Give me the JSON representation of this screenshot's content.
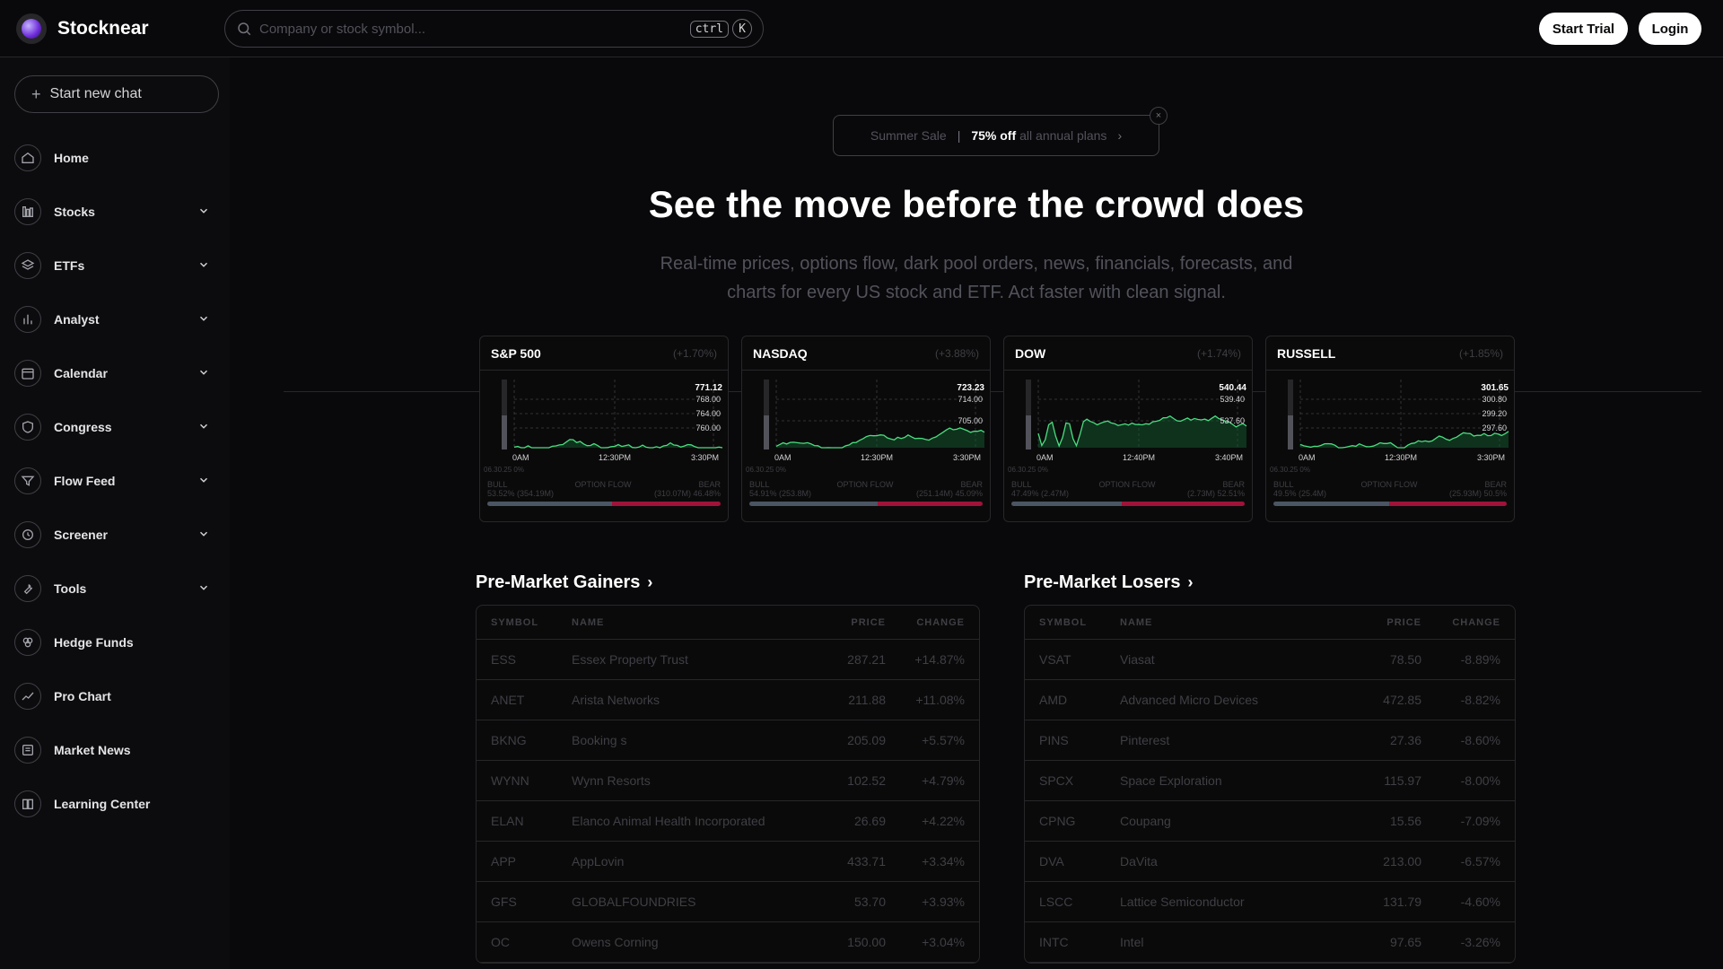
{
  "app": {
    "name": "Stocknear"
  },
  "search": {
    "placeholder": "Company or stock symbol...",
    "kbd_ctrl": "ctrl",
    "kbd_k": "K"
  },
  "header": {
    "trial_label": "Start Trial",
    "login_label": "Login"
  },
  "sidebar": {
    "new_chat_label": "Start new chat",
    "items": [
      {
        "label": "Home",
        "icon": "home-icon",
        "expandable": false
      },
      {
        "label": "Stocks",
        "icon": "stocks-icon",
        "expandable": true
      },
      {
        "label": "ETFs",
        "icon": "layers-icon",
        "expandable": true
      },
      {
        "label": "Analyst",
        "icon": "bar-chart-icon",
        "expandable": true
      },
      {
        "label": "Calendar",
        "icon": "calendar-icon",
        "expandable": true
      },
      {
        "label": "Congress",
        "icon": "shield-icon",
        "expandable": true
      },
      {
        "label": "Flow Feed",
        "icon": "filter-icon",
        "expandable": true
      },
      {
        "label": "Screener",
        "icon": "screener-icon",
        "expandable": true
      },
      {
        "label": "Tools",
        "icon": "wrench-icon",
        "expandable": true
      },
      {
        "label": "Hedge Funds",
        "icon": "circles-icon",
        "expandable": false
      },
      {
        "label": "Pro Chart",
        "icon": "line-chart-icon",
        "expandable": false
      },
      {
        "label": "Market News",
        "icon": "newspaper-icon",
        "expandable": false
      },
      {
        "label": "Learning Center",
        "icon": "book-icon",
        "expandable": false
      }
    ]
  },
  "promo": {
    "label": "Summer Sale",
    "highlight": "75% off",
    "rest": "all annual plans",
    "close": "×",
    "arrow": "›"
  },
  "hero": {
    "title": "See the move before the crowd does",
    "subtitle": "Real-time prices, options flow, dark pool orders, news, financials, forecasts, and charts for every US stock and ETF. Act faster with clean signal."
  },
  "indices": [
    {
      "name": "S&P 500",
      "change": "(+1.70%)",
      "last": "771.12",
      "levels": [
        "768.00",
        "764.00",
        "760.00"
      ],
      "times": [
        "0AM",
        "12:30PM",
        "3:30PM"
      ],
      "ts": "06.30.25 0%",
      "bull": "BULL",
      "bear": "BEAR",
      "flow_label": "OPTION FLOW",
      "bull_val": "53.52% (354.19M)",
      "bear_val": "(310.07M) 46.48%",
      "bull_pct": 53.52,
      "seed": 1
    },
    {
      "name": "NASDAQ",
      "change": "(+3.88%)",
      "last": "723.23",
      "levels": [
        "714.00",
        "705.00"
      ],
      "times": [
        "0AM",
        "12:30PM",
        "3:30PM"
      ],
      "ts": "06.30.25 0%",
      "bull": "BULL",
      "bear": "BEAR",
      "flow_label": "OPTION FLOW",
      "bull_val": "54.91% (253.8M)",
      "bear_val": "(251.14M) 45.09%",
      "bull_pct": 54.91,
      "seed": 2
    },
    {
      "name": "DOW",
      "change": "(+1.74%)",
      "last": "540.44",
      "levels": [
        "539.40",
        "537.60"
      ],
      "times": [
        "0AM",
        "12:40PM",
        "3:40PM"
      ],
      "ts": "06.30.25 0%",
      "bull": "BULL",
      "bear": "BEAR",
      "flow_label": "OPTION FLOW",
      "bull_val": "47.49% (2.47M)",
      "bear_val": "(2.73M) 52.51%",
      "bull_pct": 47.49,
      "seed": 3
    },
    {
      "name": "RUSSELL",
      "change": "(+1.85%)",
      "last": "301.65",
      "levels": [
        "300.80",
        "299.20",
        "297.60"
      ],
      "times": [
        "0AM",
        "12:30PM",
        "3:30PM"
      ],
      "ts": "06.30.25 0%",
      "bull": "BULL",
      "bear": "BEAR",
      "flow_label": "OPTION FLOW",
      "bull_val": "49.5% (25.4M)",
      "bear_val": "(25.93M) 50.5%",
      "bull_pct": 49.5,
      "seed": 4
    }
  ],
  "gainers": {
    "title": "Pre-Market Gainers",
    "columns": [
      "SYMBOL",
      "NAME",
      "PRICE",
      "CHANGE"
    ],
    "rows": [
      [
        "ESS",
        "Essex Property Trust",
        "287.21",
        "+14.87%"
      ],
      [
        "ANET",
        "Arista Networks",
        "211.88",
        "+11.08%"
      ],
      [
        "BKNG",
        "Booking s",
        "205.09",
        "+5.57%"
      ],
      [
        "WYNN",
        "Wynn Resorts",
        "102.52",
        "+4.79%"
      ],
      [
        "ELAN",
        "Elanco Animal Health Incorporated",
        "26.69",
        "+4.22%"
      ],
      [
        "APP",
        "AppLovin",
        "433.71",
        "+3.34%"
      ],
      [
        "GFS",
        "GLOBALFOUNDRIES",
        "53.70",
        "+3.93%"
      ],
      [
        "OC",
        "Owens Corning",
        "150.00",
        "+3.04%"
      ]
    ]
  },
  "losers": {
    "title": "Pre-Market Losers",
    "columns": [
      "SYMBOL",
      "NAME",
      "PRICE",
      "CHANGE"
    ],
    "rows": [
      [
        "VSAT",
        "Viasat",
        "78.50",
        "-8.89%"
      ],
      [
        "AMD",
        "Advanced Micro Devices",
        "472.85",
        "-8.82%"
      ],
      [
        "PINS",
        "Pinterest",
        "27.36",
        "-8.60%"
      ],
      [
        "SPCX",
        "Space Exploration",
        "115.97",
        "-8.00%"
      ],
      [
        "CPNG",
        "Coupang",
        "15.56",
        "-7.09%"
      ],
      [
        "DVA",
        "DaVita",
        "213.00",
        "-6.57%"
      ],
      [
        "LSCC",
        "Lattice Semiconductor",
        "131.79",
        "-4.60%"
      ],
      [
        "INTC",
        "Intel",
        "97.65",
        "-3.26%"
      ]
    ]
  }
}
